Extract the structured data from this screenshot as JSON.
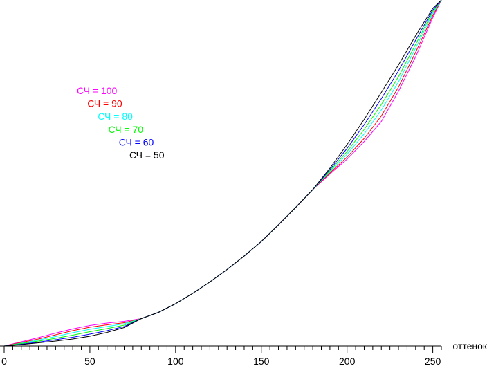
{
  "chart_data": {
    "type": "line",
    "title": "",
    "xlabel": "оттенок",
    "ylabel": "",
    "xlim": [
      0,
      255
    ],
    "ylim": [
      0,
      1
    ],
    "grid": false,
    "legend_placement": "upper-left",
    "x_ticks": [
      0,
      50,
      100,
      150,
      200,
      250
    ],
    "x_tick_labels": [
      "0",
      "50",
      "100",
      "150",
      "200",
      "250"
    ],
    "x": [
      0,
      10,
      20,
      30,
      40,
      50,
      60,
      70,
      80,
      90,
      100,
      110,
      120,
      130,
      140,
      150,
      160,
      170,
      180,
      190,
      200,
      210,
      220,
      230,
      240,
      250,
      255
    ],
    "series": [
      {
        "name": "СЧ = 100",
        "color": "#ff00ff",
        "values": [
          0,
          0.012,
          0.024,
          0.037,
          0.049,
          0.059,
          0.066,
          0.071,
          0.079,
          0.097,
          0.122,
          0.152,
          0.185,
          0.221,
          0.26,
          0.302,
          0.35,
          0.4,
          0.452,
          0.497,
          0.54,
          0.591,
          0.649,
          0.736,
          0.836,
          0.949,
          1
        ]
      },
      {
        "name": "СЧ = 90",
        "color": "#ff0000",
        "values": [
          0,
          0.01,
          0.02,
          0.032,
          0.044,
          0.054,
          0.061,
          0.067,
          0.079,
          0.097,
          0.122,
          0.152,
          0.185,
          0.221,
          0.26,
          0.302,
          0.35,
          0.4,
          0.452,
          0.5,
          0.546,
          0.6,
          0.665,
          0.748,
          0.849,
          0.955,
          1
        ]
      },
      {
        "name": "СЧ = 80",
        "color": "#00ffff",
        "values": [
          0,
          0.008,
          0.017,
          0.027,
          0.038,
          0.048,
          0.056,
          0.064,
          0.079,
          0.097,
          0.122,
          0.152,
          0.185,
          0.221,
          0.26,
          0.302,
          0.35,
          0.4,
          0.452,
          0.503,
          0.554,
          0.613,
          0.682,
          0.763,
          0.861,
          0.961,
          1
        ]
      },
      {
        "name": "СЧ = 70",
        "color": "#00ff00",
        "values": [
          0,
          0.007,
          0.014,
          0.022,
          0.031,
          0.041,
          0.05,
          0.06,
          0.079,
          0.097,
          0.122,
          0.152,
          0.185,
          0.221,
          0.26,
          0.302,
          0.35,
          0.4,
          0.452,
          0.506,
          0.562,
          0.626,
          0.698,
          0.778,
          0.872,
          0.966,
          1
        ]
      },
      {
        "name": "СЧ = 60",
        "color": "#0000ff",
        "values": [
          0,
          0.005,
          0.011,
          0.018,
          0.025,
          0.034,
          0.044,
          0.056,
          0.079,
          0.097,
          0.122,
          0.152,
          0.185,
          0.221,
          0.26,
          0.302,
          0.35,
          0.4,
          0.452,
          0.51,
          0.571,
          0.64,
          0.715,
          0.795,
          0.884,
          0.971,
          1
        ]
      },
      {
        "name": "СЧ = 50",
        "color": "#000000",
        "values": [
          0,
          0.004,
          0.009,
          0.014,
          0.02,
          0.028,
          0.039,
          0.053,
          0.079,
          0.097,
          0.122,
          0.152,
          0.185,
          0.221,
          0.26,
          0.302,
          0.35,
          0.4,
          0.452,
          0.514,
          0.582,
          0.655,
          0.733,
          0.812,
          0.897,
          0.976,
          1
        ]
      }
    ]
  }
}
